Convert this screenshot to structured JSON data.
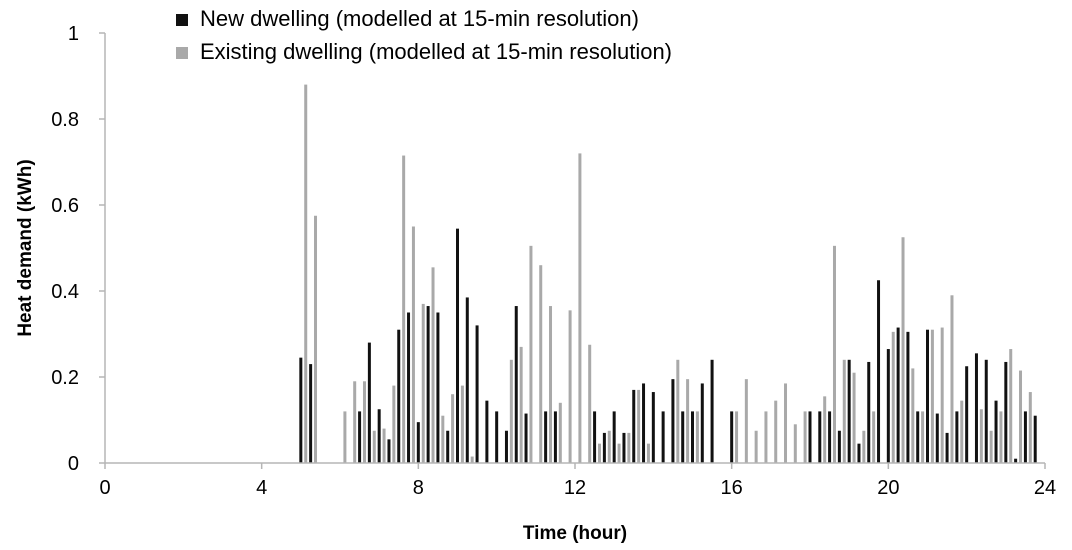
{
  "chart_data": {
    "type": "bar",
    "title": "",
    "xlabel": "Time (hour)",
    "ylabel": "Heat demand (kWh)",
    "xlim": [
      0,
      24
    ],
    "ylim": [
      0,
      1
    ],
    "x_ticks": [
      "0",
      "4",
      "8",
      "12",
      "16",
      "20",
      "24"
    ],
    "y_ticks": [
      "0",
      "0.2",
      "0.4",
      "0.6",
      "0.8",
      "1"
    ],
    "grid": false,
    "legend_position": "top-left",
    "series": [
      {
        "name": "New dwelling (modelled at 15-min resolution)",
        "color": "#111111",
        "points": [
          [
            5.0,
            0.245
          ],
          [
            5.25,
            0.23
          ],
          [
            6.5,
            0.12
          ],
          [
            6.75,
            0.28
          ],
          [
            7.0,
            0.125
          ],
          [
            7.25,
            0.055
          ],
          [
            7.5,
            0.31
          ],
          [
            7.75,
            0.35
          ],
          [
            8.0,
            0.095
          ],
          [
            8.25,
            0.365
          ],
          [
            8.5,
            0.35
          ],
          [
            8.75,
            0.075
          ],
          [
            9.0,
            0.545
          ],
          [
            9.25,
            0.385
          ],
          [
            9.5,
            0.32
          ],
          [
            9.75,
            0.145
          ],
          [
            10.0,
            0.12
          ],
          [
            10.25,
            0.075
          ],
          [
            10.5,
            0.365
          ],
          [
            10.75,
            0.115
          ],
          [
            11.25,
            0.12
          ],
          [
            11.5,
            0.12
          ],
          [
            12.5,
            0.12
          ],
          [
            12.75,
            0.07
          ],
          [
            13.0,
            0.12
          ],
          [
            13.25,
            0.07
          ],
          [
            13.5,
            0.17
          ],
          [
            13.75,
            0.185
          ],
          [
            14.0,
            0.165
          ],
          [
            14.25,
            0.12
          ],
          [
            14.5,
            0.195
          ],
          [
            14.75,
            0.12
          ],
          [
            15.0,
            0.12
          ],
          [
            15.25,
            0.185
          ],
          [
            15.5,
            0.24
          ],
          [
            16.0,
            0.12
          ],
          [
            18.0,
            0.12
          ],
          [
            18.25,
            0.12
          ],
          [
            18.5,
            0.12
          ],
          [
            18.75,
            0.075
          ],
          [
            19.0,
            0.24
          ],
          [
            19.25,
            0.045
          ],
          [
            19.5,
            0.235
          ],
          [
            19.75,
            0.425
          ],
          [
            20.0,
            0.265
          ],
          [
            20.25,
            0.315
          ],
          [
            20.5,
            0.305
          ],
          [
            20.75,
            0.12
          ],
          [
            21.0,
            0.31
          ],
          [
            21.25,
            0.115
          ],
          [
            21.5,
            0.07
          ],
          [
            21.75,
            0.12
          ],
          [
            22.0,
            0.225
          ],
          [
            22.25,
            0.255
          ],
          [
            22.5,
            0.24
          ],
          [
            22.75,
            0.145
          ],
          [
            23.0,
            0.235
          ],
          [
            23.25,
            0.01
          ],
          [
            23.5,
            0.12
          ],
          [
            23.75,
            0.11
          ]
        ]
      },
      {
        "name": "Existing dwelling (modelled at 15-min resolution)",
        "color": "#a9a9a9",
        "points": [
          [
            5.125,
            0.88
          ],
          [
            5.375,
            0.575
          ],
          [
            6.125,
            0.12
          ],
          [
            6.375,
            0.19
          ],
          [
            6.625,
            0.19
          ],
          [
            6.875,
            0.075
          ],
          [
            7.125,
            0.08
          ],
          [
            7.375,
            0.18
          ],
          [
            7.625,
            0.715
          ],
          [
            7.875,
            0.55
          ],
          [
            8.125,
            0.37
          ],
          [
            8.375,
            0.455
          ],
          [
            8.625,
            0.11
          ],
          [
            8.875,
            0.16
          ],
          [
            9.125,
            0.18
          ],
          [
            9.375,
            0.015
          ],
          [
            10.375,
            0.24
          ],
          [
            10.625,
            0.27
          ],
          [
            10.875,
            0.505
          ],
          [
            11.125,
            0.46
          ],
          [
            11.375,
            0.365
          ],
          [
            11.625,
            0.14
          ],
          [
            11.875,
            0.355
          ],
          [
            12.125,
            0.72
          ],
          [
            12.375,
            0.275
          ],
          [
            12.625,
            0.045
          ],
          [
            12.875,
            0.075
          ],
          [
            13.125,
            0.045
          ],
          [
            13.375,
            0.07
          ],
          [
            13.625,
            0.17
          ],
          [
            13.875,
            0.045
          ],
          [
            14.625,
            0.24
          ],
          [
            14.875,
            0.195
          ],
          [
            15.125,
            0.12
          ],
          [
            16.125,
            0.12
          ],
          [
            16.375,
            0.195
          ],
          [
            16.625,
            0.075
          ],
          [
            16.875,
            0.12
          ],
          [
            17.125,
            0.145
          ],
          [
            17.375,
            0.185
          ],
          [
            17.625,
            0.09
          ],
          [
            17.875,
            0.12
          ],
          [
            18.375,
            0.155
          ],
          [
            18.625,
            0.505
          ],
          [
            18.875,
            0.24
          ],
          [
            19.125,
            0.21
          ],
          [
            19.375,
            0.075
          ],
          [
            19.625,
            0.12
          ],
          [
            20.125,
            0.305
          ],
          [
            20.375,
            0.525
          ],
          [
            20.625,
            0.22
          ],
          [
            20.875,
            0.12
          ],
          [
            21.125,
            0.31
          ],
          [
            21.375,
            0.315
          ],
          [
            21.625,
            0.39
          ],
          [
            21.875,
            0.145
          ],
          [
            22.375,
            0.125
          ],
          [
            22.625,
            0.075
          ],
          [
            22.875,
            0.12
          ],
          [
            23.125,
            0.265
          ],
          [
            23.375,
            0.215
          ],
          [
            23.625,
            0.165
          ]
        ]
      }
    ]
  }
}
